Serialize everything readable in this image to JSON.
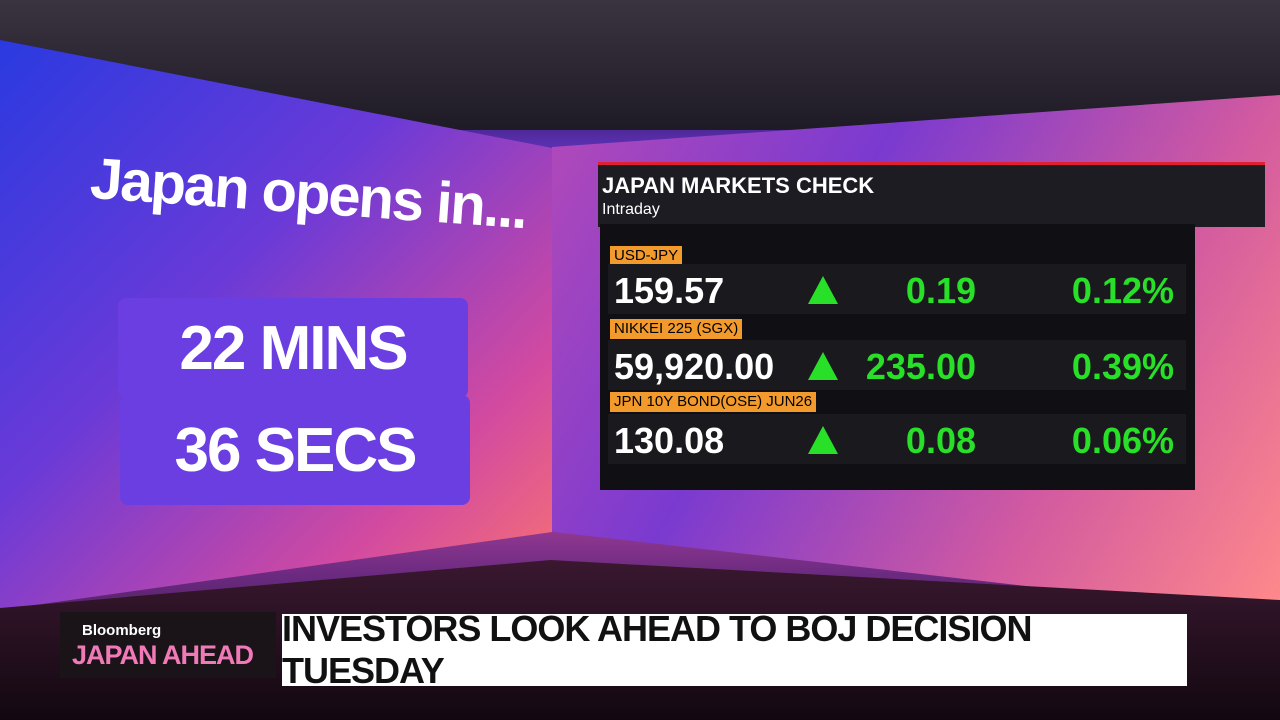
{
  "countdown_wall": {
    "title": "Japan opens in...",
    "lines": [
      "22 MINS",
      "36 SECS"
    ]
  },
  "markets": {
    "title": "JAPAN MARKETS CHECK",
    "subtitle": "Intraday",
    "rows": [
      {
        "label": "USD-JPY",
        "price": "159.57",
        "change": "0.19",
        "percent": "0.12%"
      },
      {
        "label": "NIKKEI 225 (SGX)",
        "price": "59,920.00",
        "change": "235.00",
        "percent": "0.39%"
      },
      {
        "label": "JPN 10Y BOND(OSE) JUN26",
        "price": "130.08",
        "change": "0.08",
        "percent": "0.06%"
      }
    ]
  },
  "lower_third": {
    "brand": "Bloomberg",
    "show": "JAPAN AHEAD",
    "headline": "INVESTORS LOOK AHEAD TO BOJ DECISION TUESDAY"
  }
}
